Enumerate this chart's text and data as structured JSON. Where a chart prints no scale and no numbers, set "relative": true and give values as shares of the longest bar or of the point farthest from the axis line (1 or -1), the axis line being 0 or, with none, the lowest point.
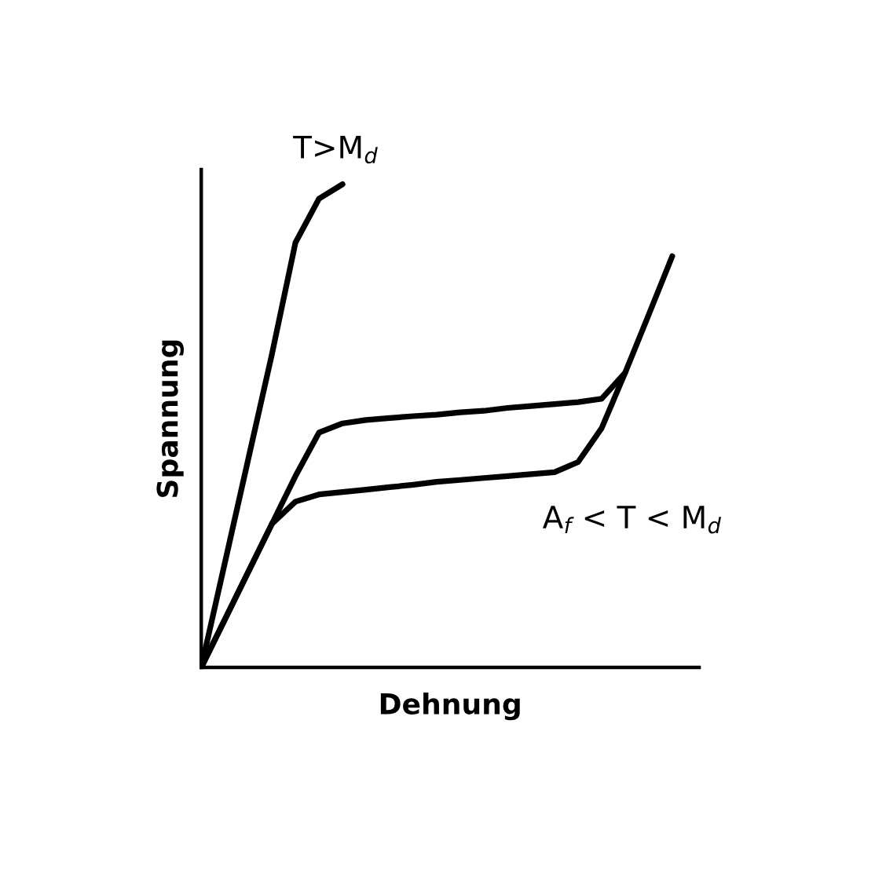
{
  "chart_data": {
    "type": "line",
    "relative": true,
    "xlabel": "Dehnung",
    "ylabel": "Spannung",
    "marker": "none",
    "line_style": "solid",
    "categories": [
      null,
      null,
      null,
      null,
      null,
      null,
      null,
      null,
      null,
      null,
      null,
      null,
      null,
      null,
      null,
      null,
      null,
      null,
      null,
      null,
      null
    ],
    "series": [
      {
        "color": "#000000",
        "values": [
          0,
          0.216,
          0.432,
          0.648,
          0.879,
          0.97,
          1.0,
          null,
          null,
          null,
          null,
          null,
          null,
          null,
          null,
          null,
          null,
          null,
          null,
          null,
          null
        ]
      },
      {
        "color": "#000000",
        "values": [
          0,
          0.099,
          0.198,
          0.297,
          0.396,
          0.486,
          0.505,
          0.512,
          0.516,
          0.52,
          0.523,
          0.528,
          0.531,
          0.537,
          0.541,
          0.545,
          0.549,
          0.556,
          0.61,
          0.73,
          0.851
        ]
      },
      {
        "color": "#000000",
        "values": [
          0,
          0.099,
          0.198,
          0.297,
          0.343,
          0.358,
          0.363,
          0.368,
          0.373,
          0.378,
          0.384,
          0.388,
          0.392,
          0.396,
          0.4,
          0.404,
          0.425,
          0.495,
          0.61,
          null,
          null
        ]
      }
    ],
    "annotations": [
      "T>M$_{d}$",
      "A$_{f}$ < T < M$_{d}$"
    ]
  }
}
